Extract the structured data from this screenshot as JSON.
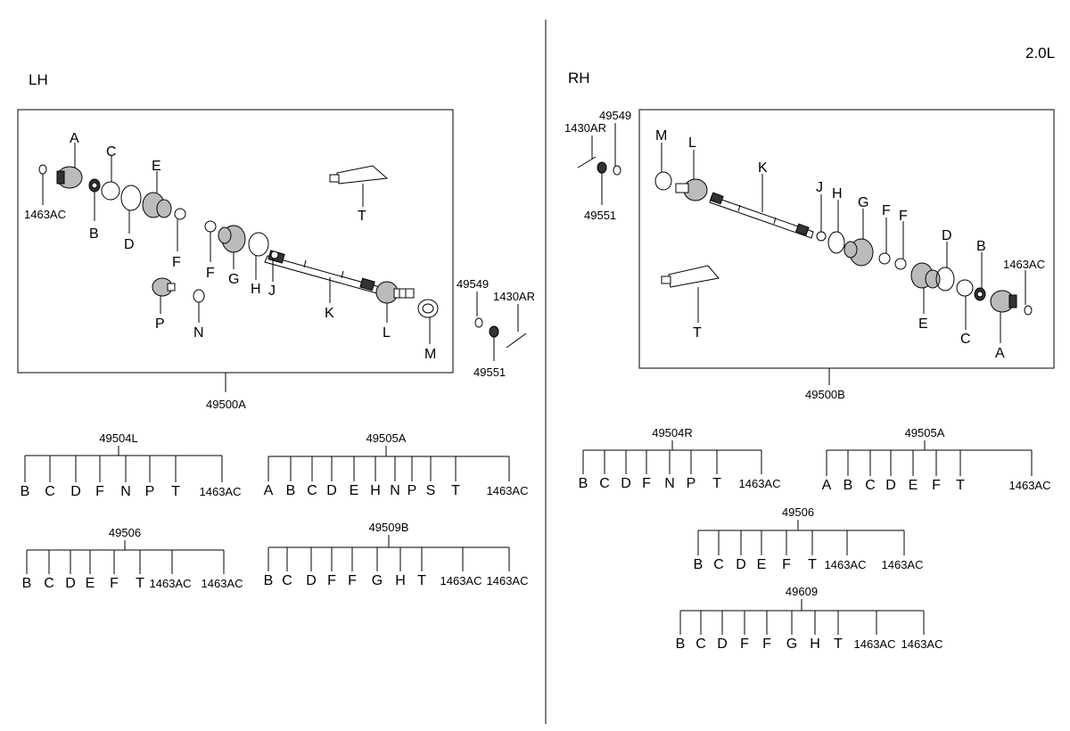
{
  "header": {
    "engine": "2.0L",
    "left_side": "LH",
    "right_side": "RH"
  },
  "lh": {
    "box_label": "49500A",
    "callouts": [
      "A",
      "B",
      "C",
      "D",
      "E",
      "F",
      "F",
      "G",
      "H",
      "J",
      "K",
      "L",
      "M",
      "N",
      "P",
      "T"
    ],
    "ref_1463AC": "1463AC",
    "outside": {
      "n49549": "49549",
      "n1430AR": "1430AR",
      "n49551": "49551"
    }
  },
  "rh": {
    "box_label": "49500B",
    "callouts": [
      "A",
      "B",
      "C",
      "D",
      "E",
      "F",
      "F",
      "G",
      "H",
      "J",
      "K",
      "L",
      "M",
      "T"
    ],
    "ref_1463AC": "1463AC",
    "outside": {
      "n49549": "49549",
      "n1430AR": "1430AR",
      "n49551": "49551"
    }
  },
  "kits": [
    {
      "id": "lh-49504L",
      "title": "49504L",
      "items": [
        "B",
        "C",
        "D",
        "F",
        "N",
        "P",
        "T",
        "1463AC"
      ]
    },
    {
      "id": "lh-49505A",
      "title": "49505A",
      "items": [
        "A",
        "B",
        "C",
        "D",
        "E",
        "H",
        "N",
        "P",
        "S",
        "T",
        "1463AC"
      ]
    },
    {
      "id": "lh-49506",
      "title": "49506",
      "items": [
        "B",
        "C",
        "D",
        "E",
        "F",
        "T",
        "1463AC",
        "1463AC"
      ]
    },
    {
      "id": "lh-49509B",
      "title": "49509B",
      "items": [
        "B",
        "C",
        "D",
        "F",
        "F",
        "G",
        "H",
        "T",
        "1463AC",
        "1463AC"
      ]
    },
    {
      "id": "rh-49504R",
      "title": "49504R",
      "items": [
        "B",
        "C",
        "D",
        "F",
        "N",
        "P",
        "T",
        "1463AC"
      ]
    },
    {
      "id": "rh-49505A",
      "title": "49505A",
      "items": [
        "A",
        "B",
        "C",
        "D",
        "E",
        "F",
        "T",
        "1463AC"
      ]
    },
    {
      "id": "rh-49506",
      "title": "49506",
      "items": [
        "B",
        "C",
        "D",
        "E",
        "F",
        "T",
        "1463AC",
        "1463AC"
      ]
    },
    {
      "id": "rh-49609",
      "title": "49609",
      "items": [
        "B",
        "C",
        "D",
        "F",
        "F",
        "G",
        "H",
        "T",
        "1463AC",
        "1463AC"
      ]
    }
  ]
}
